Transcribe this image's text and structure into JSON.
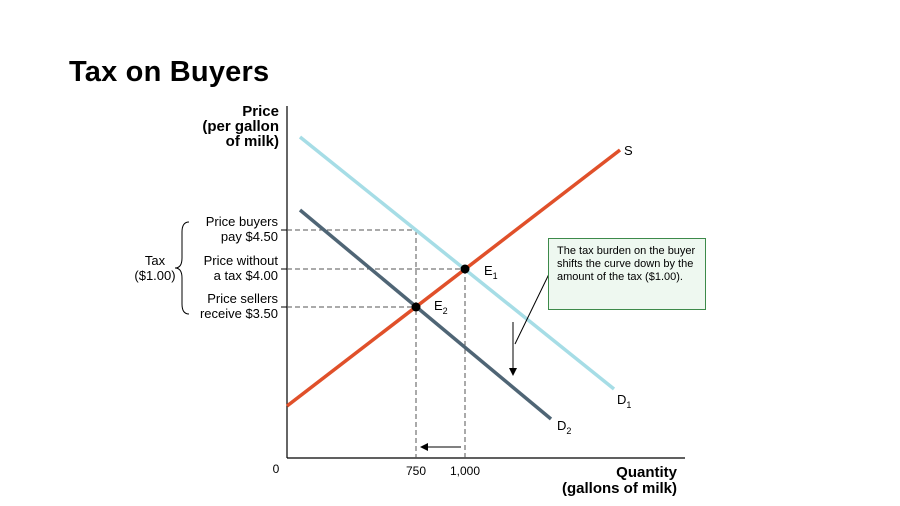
{
  "slide": {
    "title": "Tax on Buyers"
  },
  "chart_data": {
    "type": "line",
    "title": "Tax on Buyers",
    "ylabel_lines": [
      "Price",
      "(per gallon",
      "of milk)"
    ],
    "xlabel_lines": [
      "Quantity",
      "(gallons of milk)"
    ],
    "origin_label": "0",
    "x_ticks": [
      "750",
      "1,000"
    ],
    "series": [
      {
        "name": "S",
        "color": "#e0502a"
      },
      {
        "name": "D",
        "subscript": "1",
        "color": "#a6dde6"
      },
      {
        "name": "D",
        "subscript": "2",
        "color": "#4f6575"
      }
    ],
    "equilibria": [
      {
        "label": "E",
        "subscript": "1",
        "quantity": 1000,
        "price": 4.0
      },
      {
        "label": "E",
        "subscript": "2",
        "quantity": 750,
        "price": 3.5
      }
    ],
    "price_levels": [
      {
        "lines": [
          "Price buyers",
          "pay $4.50"
        ],
        "price": 4.5
      },
      {
        "lines": [
          "Price without",
          "a tax $4.00"
        ],
        "price": 4.0
      },
      {
        "lines": [
          "Price sellers",
          "receive $3.50"
        ],
        "price": 3.5
      }
    ],
    "tax_bracket": {
      "lines": [
        "Tax",
        "($1.00)"
      ]
    },
    "annotation": "The tax burden on the buyer shifts the curve down by the amount of the tax ($1.00).",
    "grid": false
  }
}
